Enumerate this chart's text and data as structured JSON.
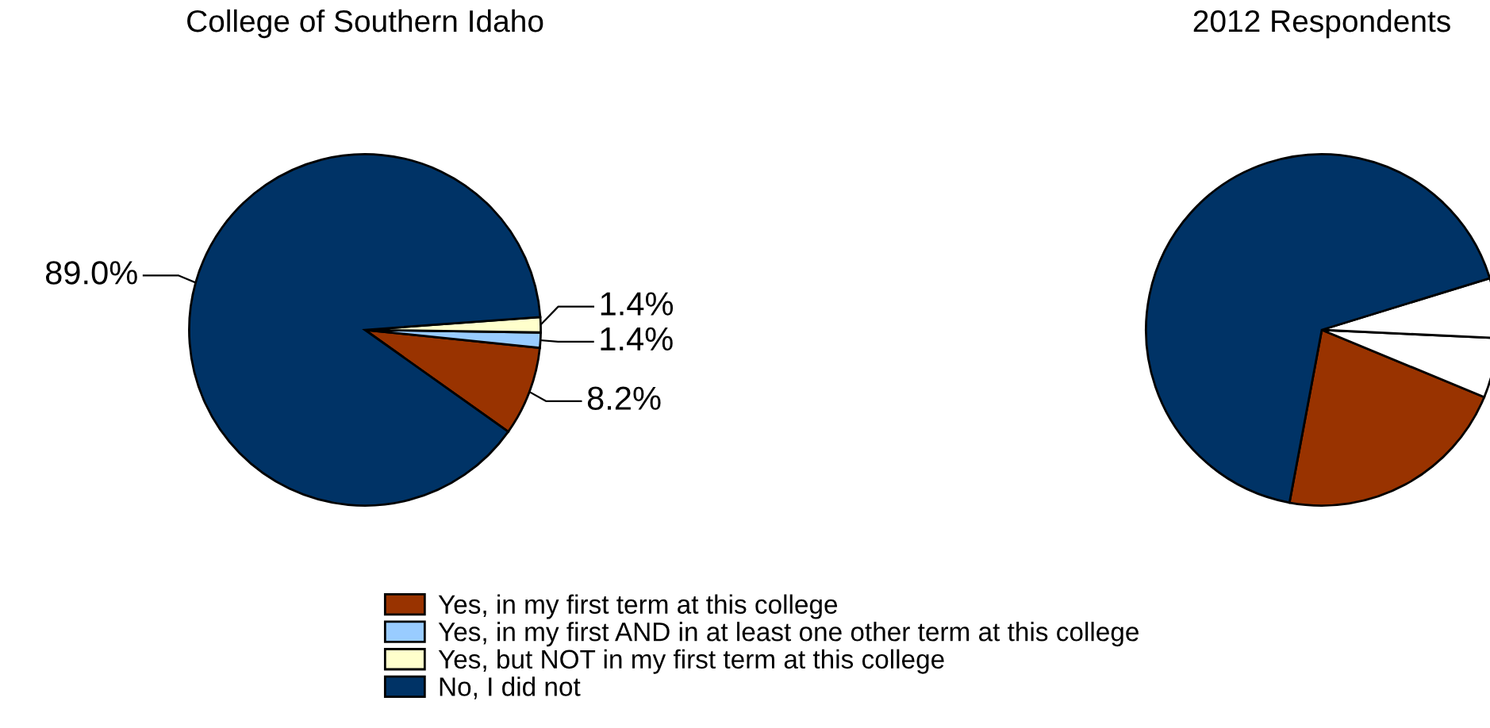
{
  "chart_data": [
    {
      "type": "pie",
      "title": "College of Southern Idaho",
      "categories": [
        "Yes, in my first term at this college",
        "Yes, in my first AND in at least one other term at this college",
        "Yes, but NOT in my first term at this college",
        "No, I did not"
      ],
      "values": [
        8.2,
        1.4,
        1.4,
        89.0
      ],
      "colors": [
        "#993300",
        "#99ccff",
        "#ffffcc",
        "#003366"
      ],
      "value_labels": [
        "8.2%",
        "1.4%",
        "1.4%",
        "89.0%"
      ],
      "legend": "bottom"
    },
    {
      "type": "pie",
      "title": "2012 Respondents",
      "values": [
        21.7,
        5.5,
        5.5,
        67.3
      ],
      "colors": [
        "#993300",
        "#ffffff",
        "#ffffff",
        "#003366"
      ]
    }
  ]
}
